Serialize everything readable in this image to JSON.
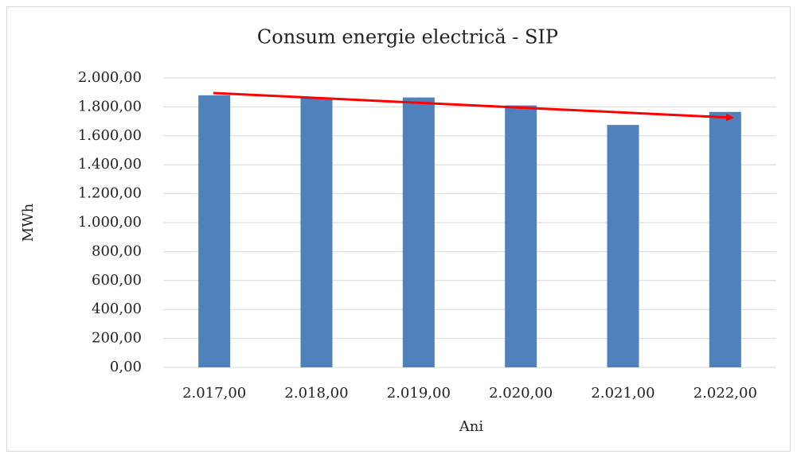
{
  "chart_data": {
    "type": "bar",
    "title": "Consum energie electrică - SIP",
    "x_label": "Ani",
    "y_label": "MWh",
    "categories": [
      "2.017,00",
      "2.018,00",
      "2.019,00",
      "2.020,00",
      "2.021,00",
      "2.022,00"
    ],
    "values": [
      1880,
      1860,
      1865,
      1810,
      1675,
      1765
    ],
    "color": "#4f81bd",
    "ylim": [
      0,
      2000
    ],
    "yticks": [
      {
        "value": 0,
        "label": "0,00"
      },
      {
        "value": 200,
        "label": "200,00"
      },
      {
        "value": 400,
        "label": "400,00"
      },
      {
        "value": 600,
        "label": "600,00"
      },
      {
        "value": 800,
        "label": "800,00"
      },
      {
        "value": 1000,
        "label": "1.000,00"
      },
      {
        "value": 1200,
        "label": "1.200,00"
      },
      {
        "value": 1400,
        "label": "1.400,00"
      },
      {
        "value": 1600,
        "label": "1.600,00"
      },
      {
        "value": 1800,
        "label": "1.800,00"
      },
      {
        "value": 2000,
        "label": "2.000,00"
      }
    ],
    "grid": true
  }
}
